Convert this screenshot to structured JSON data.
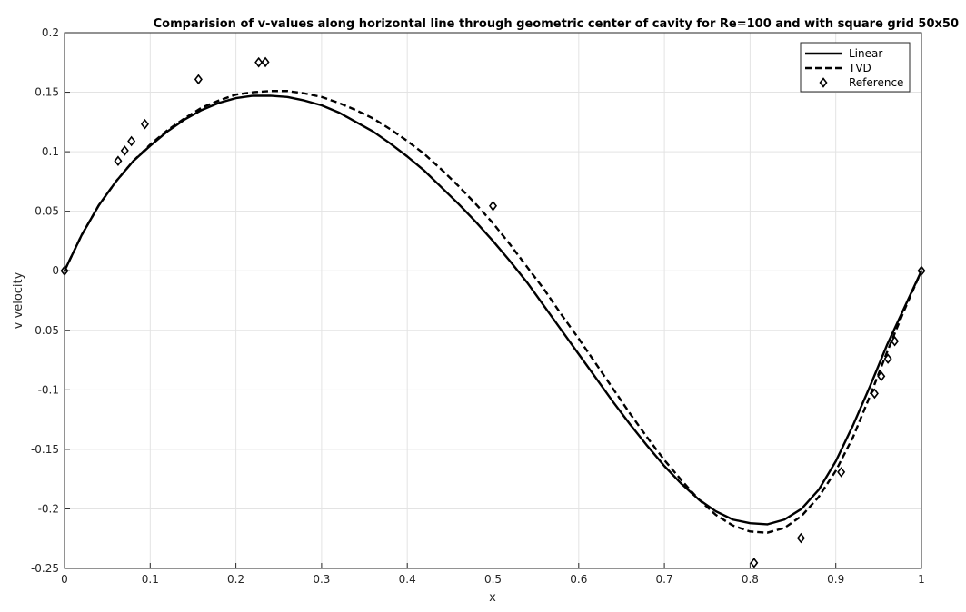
{
  "chart_data": {
    "type": "line",
    "title": "Comparision of v-values along horizontal line through geometric center of cavity for Re=100 and with square grid 50x50",
    "xlabel": "x",
    "ylabel": "v velocity",
    "xlim": [
      0,
      1
    ],
    "ylim": [
      -0.25,
      0.2
    ],
    "grid": true,
    "legend_position": "top-right",
    "x_ticks": [
      "0",
      "0.1",
      "0.2",
      "0.3",
      "0.4",
      "0.5",
      "0.6",
      "0.7",
      "0.8",
      "0.9",
      "1"
    ],
    "y_ticks": [
      "-0.25",
      "-0.2",
      "-0.15",
      "-0.1",
      "-0.05",
      "0",
      "0.05",
      "0.1",
      "0.15",
      "0.2"
    ],
    "series": [
      {
        "name": "Linear",
        "style": "solid",
        "color": "#000000",
        "x": [
          0,
          0.02,
          0.04,
          0.06,
          0.08,
          0.1,
          0.12,
          0.14,
          0.16,
          0.18,
          0.2,
          0.22,
          0.24,
          0.26,
          0.28,
          0.3,
          0.32,
          0.34,
          0.36,
          0.38,
          0.4,
          0.42,
          0.44,
          0.46,
          0.48,
          0.5,
          0.52,
          0.54,
          0.56,
          0.58,
          0.6,
          0.62,
          0.64,
          0.66,
          0.68,
          0.7,
          0.72,
          0.74,
          0.76,
          0.78,
          0.8,
          0.82,
          0.84,
          0.86,
          0.88,
          0.9,
          0.92,
          0.94,
          0.96,
          0.98,
          1.0
        ],
        "y": [
          0,
          0.03,
          0.055,
          0.075,
          0.092,
          0.105,
          0.117,
          0.127,
          0.135,
          0.141,
          0.145,
          0.147,
          0.147,
          0.146,
          0.143,
          0.139,
          0.133,
          0.125,
          0.117,
          0.107,
          0.096,
          0.084,
          0.07,
          0.056,
          0.041,
          0.025,
          0.008,
          -0.01,
          -0.03,
          -0.05,
          -0.07,
          -0.09,
          -0.11,
          -0.129,
          -0.147,
          -0.164,
          -0.179,
          -0.192,
          -0.202,
          -0.209,
          -0.212,
          -0.213,
          -0.209,
          -0.2,
          -0.184,
          -0.16,
          -0.13,
          -0.097,
          -0.062,
          -0.031,
          0
        ]
      },
      {
        "name": "TVD",
        "style": "dashed",
        "color": "#000000",
        "x": [
          0,
          0.02,
          0.04,
          0.06,
          0.08,
          0.1,
          0.12,
          0.14,
          0.16,
          0.18,
          0.2,
          0.22,
          0.24,
          0.26,
          0.28,
          0.3,
          0.32,
          0.34,
          0.36,
          0.38,
          0.4,
          0.42,
          0.44,
          0.46,
          0.48,
          0.5,
          0.52,
          0.54,
          0.56,
          0.58,
          0.6,
          0.62,
          0.64,
          0.66,
          0.68,
          0.7,
          0.72,
          0.74,
          0.76,
          0.78,
          0.8,
          0.82,
          0.84,
          0.86,
          0.88,
          0.9,
          0.92,
          0.94,
          0.96,
          0.98,
          1.0
        ],
        "y": [
          0,
          0.03,
          0.055,
          0.075,
          0.092,
          0.106,
          0.118,
          0.128,
          0.137,
          0.143,
          0.148,
          0.15,
          0.151,
          0.151,
          0.149,
          0.146,
          0.141,
          0.135,
          0.128,
          0.119,
          0.109,
          0.098,
          0.085,
          0.071,
          0.056,
          0.04,
          0.022,
          0.003,
          -0.016,
          -0.037,
          -0.057,
          -0.078,
          -0.099,
          -0.12,
          -0.14,
          -0.159,
          -0.176,
          -0.192,
          -0.205,
          -0.214,
          -0.219,
          -0.22,
          -0.216,
          -0.206,
          -0.19,
          -0.168,
          -0.14,
          -0.105,
          -0.068,
          -0.033,
          0
        ]
      },
      {
        "name": "Reference",
        "style": "markers",
        "marker": "diamond",
        "color": "#000000",
        "x": [
          0,
          0.0625,
          0.0703,
          0.0781,
          0.0938,
          0.1563,
          0.2266,
          0.2344,
          0.5,
          0.8047,
          0.8594,
          0.9063,
          0.9453,
          0.9531,
          0.9609,
          0.9688,
          1.0
        ],
        "y": [
          0,
          0.0923,
          0.1009,
          0.1089,
          0.1232,
          0.1608,
          0.1751,
          0.1753,
          0.0545,
          -0.2453,
          -0.2245,
          -0.1691,
          -0.1031,
          -0.0886,
          -0.0739,
          -0.0591,
          0
        ]
      }
    ]
  }
}
